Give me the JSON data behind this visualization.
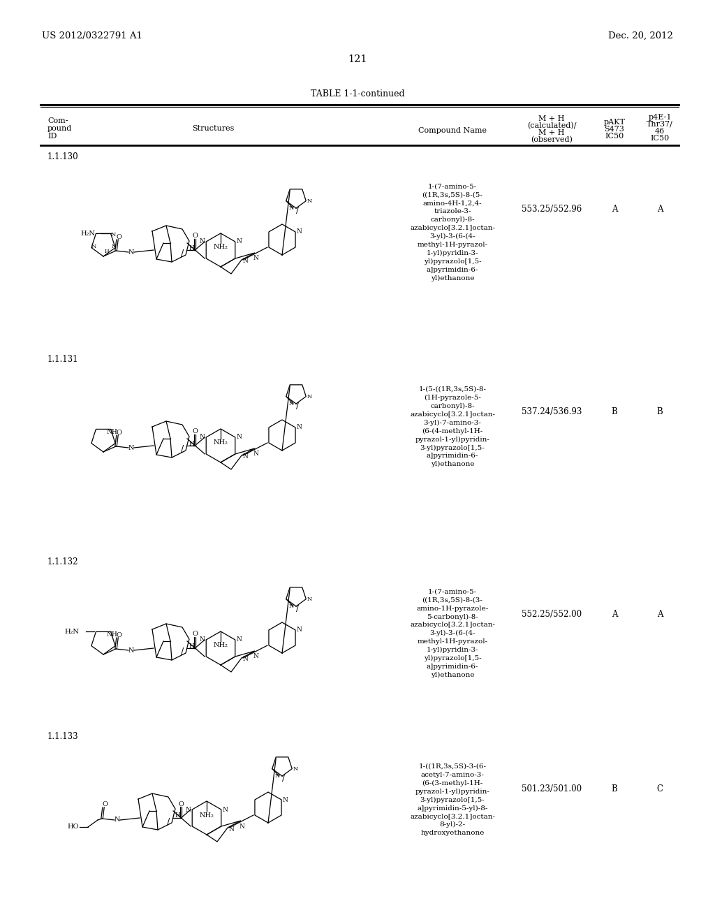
{
  "patent_number": "US 2012/0322791 A1",
  "patent_date": "Dec. 20, 2012",
  "page_number": "121",
  "table_title": "TABLE 1-1-continued",
  "col_id": "Com-\npound\nID",
  "col_structures": "Structures",
  "col_name": "Compound Name",
  "col_mh": "M + H\n(calculated)/\nM + H\n(observed)",
  "col_pakt": "pAKT\nS473\nIC50",
  "col_p4e1": "p4E-1\nThr37/\n46\nIC50",
  "rows": [
    {
      "id": "1.1.130",
      "compound_name": "1-(7-amino-5-\n((1R,3s,5S)-8-(5-\namino-4H-1,2,4-\ntriazole-3-\ncarbonyl)-8-\nazabicyclo[3.2.1]octan-\n3-yl)-3-(6-(4-\nmethyl-1H-pyrazol-\n1-yl)pyridin-3-\nyl)pyrazolo[1,5-\na]pyrimidin-6-\nyl)ethanone",
      "mh": "553.25/552.96",
      "pakt": "A",
      "p4e1": "A"
    },
    {
      "id": "1.1.131",
      "compound_name": "1-(5-((1R,3s,5S)-8-\n(1H-pyrazole-5-\ncarbonyl)-8-\nazabicyclo[3.2.1]octan-\n3-yl)-7-amino-3-\n(6-(4-methyl-1H-\npyrazol-1-yl)pyridin-\n3-yl)pyrazolo[1,5-\na]pyrimidin-6-\nyl)ethanone",
      "mh": "537.24/536.93",
      "pakt": "B",
      "p4e1": "B"
    },
    {
      "id": "1.1.132",
      "compound_name": "1-(7-amino-5-\n((1R,3s,5S)-8-(3-\namino-1H-pyrazole-\n5-carbonyl)-8-\nazabicyclo[3.2.1]octan-\n3-yl)-3-(6-(4-\nmethyl-1H-pyrazol-\n1-yl)pyridin-3-\nyl)pyrazolo[1,5-\na]pyrimidin-6-\nyl)ethanone",
      "mh": "552.25/552.00",
      "pakt": "A",
      "p4e1": "A"
    },
    {
      "id": "1.1.133",
      "compound_name": "1-((1R,3s,5S)-3-(6-\nacetyl-7-amino-3-\n(6-(3-methyl-1H-\npyrazol-1-yl)pyridin-\n3-yl)pyrazolo[1,5-\na]pyrimidin-5-yl)-8-\nazabicyclo[3.2.1]octan-\n8-yl)-2-\nhydroxyethanone",
      "mh": "501.23/501.00",
      "pakt": "B",
      "p4e1": "C"
    }
  ],
  "background_color": "#ffffff"
}
